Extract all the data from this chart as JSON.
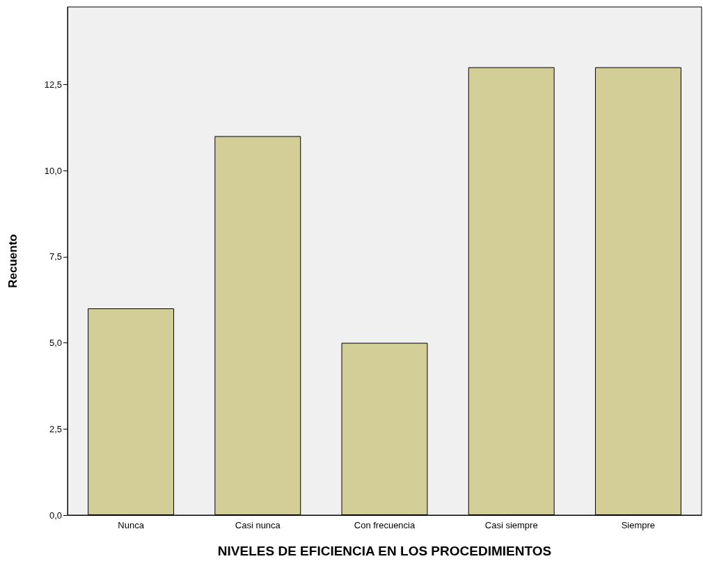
{
  "chart_data": {
    "type": "bar",
    "xlabel": "NIVELES DE EFICIENCIA EN LOS PROCEDIMIENTOS",
    "ylabel": "Recuento",
    "categories": [
      "Nunca",
      "Casi nunca",
      "Con frecuencia",
      "Casi siempre",
      "Siempre"
    ],
    "values": [
      6,
      11,
      5,
      13,
      13
    ],
    "color": "#d3ce98",
    "ylim": [
      0,
      14.75
    ],
    "yticks": [
      {
        "value": 0,
        "label": "0,0"
      },
      {
        "value": 2.5,
        "label": "2,5"
      },
      {
        "value": 5,
        "label": "5,0"
      },
      {
        "value": 7.5,
        "label": "7,5"
      },
      {
        "value": 10,
        "label": "10,0"
      },
      {
        "value": 12.5,
        "label": "12,5"
      }
    ],
    "grid": false
  }
}
